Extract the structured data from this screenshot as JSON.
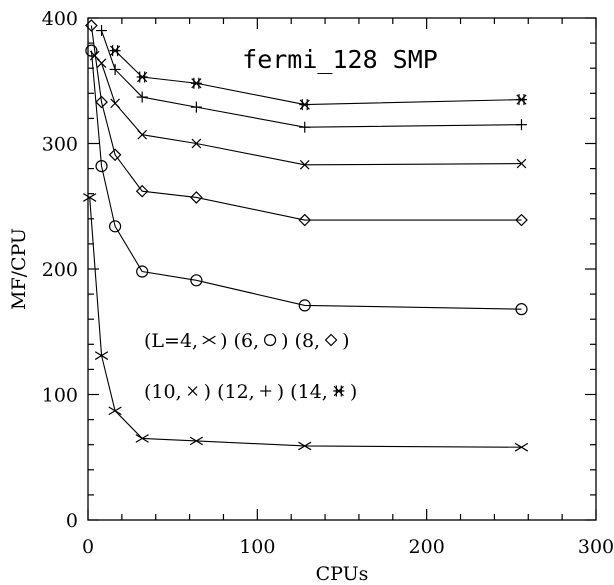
{
  "chart_data": {
    "type": "line",
    "title": "fermi_128 SMP",
    "xlabel": "CPUs",
    "ylabel": "MF/CPU",
    "xlim": [
      0,
      300
    ],
    "ylim": [
      0,
      400
    ],
    "xticks": [
      0,
      100,
      200,
      300
    ],
    "yticks": [
      0,
      100,
      200,
      300,
      400
    ],
    "grid": false,
    "legend_lines": [
      [
        {
          "text": "(L=4,",
          "marker": "cross"
        },
        {
          "text": ") (6,",
          "marker": "circle"
        },
        {
          "text": ") (8,",
          "marker": "diamond"
        },
        {
          "text": ")",
          "marker": null
        }
      ],
      [
        {
          "text": "(10,",
          "marker": "x"
        },
        {
          "text": ") (12,",
          "marker": "plus"
        },
        {
          "text": ") (14,",
          "marker": "star"
        },
        {
          "text": ")",
          "marker": null
        }
      ]
    ],
    "series": [
      {
        "name": "L=4",
        "marker": "cross",
        "x": [
          1,
          8,
          16,
          32,
          64,
          128,
          256
        ],
        "y": [
          257,
          131,
          87,
          65,
          63,
          59,
          58
        ]
      },
      {
        "name": "6",
        "marker": "circle",
        "x": [
          2,
          8,
          16,
          32,
          64,
          128,
          256
        ],
        "y": [
          374,
          282,
          234,
          198,
          191,
          171,
          168
        ]
      },
      {
        "name": "8",
        "marker": "diamond",
        "x": [
          2,
          8,
          16,
          32,
          64,
          128,
          256
        ],
        "y": [
          394,
          333,
          291,
          262,
          257,
          239,
          239
        ]
      },
      {
        "name": "10",
        "marker": "x",
        "x": [
          4,
          8,
          16,
          32,
          64,
          128,
          256
        ],
        "y": [
          370,
          364,
          332,
          307,
          300,
          283,
          284
        ]
      },
      {
        "name": "12",
        "marker": "plus",
        "x": [
          8,
          16,
          32,
          64,
          128,
          256
        ],
        "y": [
          390,
          359,
          337,
          329,
          313,
          315
        ]
      },
      {
        "name": "14",
        "marker": "star",
        "x": [
          16,
          32,
          64,
          128,
          256
        ],
        "y": [
          374,
          353,
          348,
          331,
          335
        ]
      }
    ]
  }
}
